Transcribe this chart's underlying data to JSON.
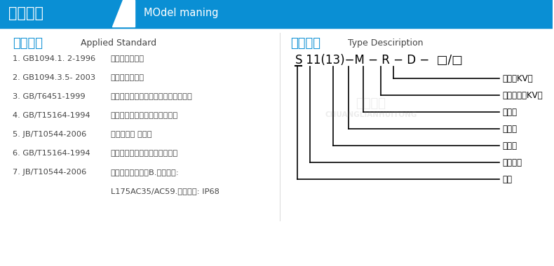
{
  "bg_color": "#ffffff",
  "header_bg": "#0a8fd4",
  "header_text_cn": "型号含义",
  "header_text_en": "MOdel maning",
  "left_section_title_cn": "产品标准",
  "left_section_title_en": "Applied Standard",
  "left_items": [
    [
      "1. GB1094.1. 2-1996",
      "《电力变压器》"
    ],
    [
      "2. GB1094.3.5- 2003",
      "《电力变压器》"
    ],
    [
      "3. GB/T6451-1999",
      "《三相油浸式变压器技术参数和要求》"
    ],
    [
      "4. GB/T15164-1994",
      "《油浸式电力变压器负载导则》"
    ],
    [
      "5. JB/T10544-2006",
      "《地下式变 压器》"
    ],
    [
      "6. GB/T15164-1994",
      "《油浸式电力变压器负载导则》"
    ],
    [
      "7. JB/T10544-2006",
      "《地下式变压器》B.绝缘水平:"
    ],
    [
      "",
      "L175AC35/AC59.防护等级: IP68"
    ]
  ],
  "right_section_title_cn": "型号说明",
  "right_section_title_en": "Type Desciription",
  "formula_text": "S 11(13)-M - R - D -  □/□",
  "line_color": "#222222",
  "blue_color": "#0a8fd4",
  "dark_color": "#444444",
  "annotations": [
    "电压（KV）",
    "额定容量（KV）",
    "地埋式",
    "熔断型",
    "全密封",
    "设计序号",
    "三相"
  ]
}
